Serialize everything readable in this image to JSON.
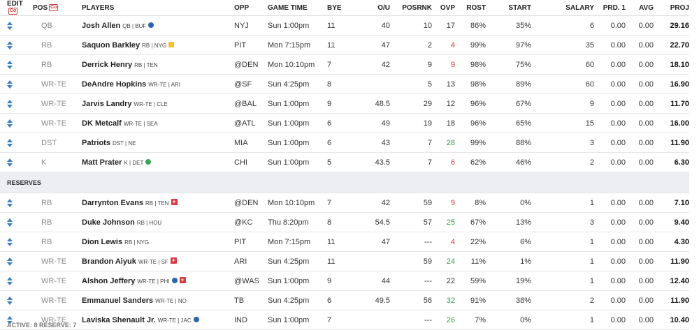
{
  "columns": {
    "edit": "EDIT",
    "pos": "POS",
    "players": "PLAYERS",
    "opp": "OPP",
    "game_time": "GAME TIME",
    "bye": "BYE",
    "ou": "O/U",
    "posrnk": "POSRNK",
    "ovp": "OVP",
    "rost": "ROST",
    "start": "START",
    "salary": "SALARY",
    "prd1": "PRD. 1",
    "avg": "AVG",
    "proj": "PROJ"
  },
  "header_icon_label": "Co",
  "starters": [
    {
      "pos": "QB",
      "name": "Josh Allen",
      "meta": "QB | BUF",
      "icon": "blue",
      "opp": "NYJ",
      "time": "Sun 1:00pm",
      "bye": "11",
      "ou": "40",
      "posrnk": "10",
      "ovp": "17",
      "ovp_color": "",
      "rost": "86%",
      "start": "35%",
      "salary": "6",
      "prd1": "0.00",
      "avg": "0.00",
      "proj": "29.16"
    },
    {
      "pos": "RB",
      "name": "Saquon Barkley",
      "meta": "RB | NYG",
      "icon": "note",
      "opp": "PIT",
      "time": "Mon 7:15pm",
      "bye": "11",
      "ou": "47",
      "posrnk": "2",
      "ovp": "4",
      "ovp_color": "red",
      "rost": "99%",
      "start": "97%",
      "salary": "35",
      "prd1": "0.00",
      "avg": "0.00",
      "proj": "22.70"
    },
    {
      "pos": "RB",
      "name": "Derrick Henry",
      "meta": "RB | TEN",
      "icon": "",
      "opp": "@DEN",
      "time": "Mon 10:10pm",
      "bye": "7",
      "ou": "42",
      "posrnk": "9",
      "ovp": "9",
      "ovp_color": "red",
      "rost": "98%",
      "start": "75%",
      "salary": "60",
      "prd1": "0.00",
      "avg": "0.00",
      "proj": "18.10"
    },
    {
      "pos": "WR-TE",
      "name": "DeAndre Hopkins",
      "meta": "WR-TE | ARI",
      "icon": "",
      "opp": "@SF",
      "time": "Sun 4:25pm",
      "bye": "8",
      "ou": "",
      "posrnk": "5",
      "ovp": "13",
      "ovp_color": "",
      "rost": "98%",
      "start": "89%",
      "salary": "60",
      "prd1": "0.00",
      "avg": "0.00",
      "proj": "16.90"
    },
    {
      "pos": "WR-TE",
      "name": "Jarvis Landry",
      "meta": "WR-TE | CLE",
      "icon": "",
      "opp": "@BAL",
      "time": "Sun 1:00pm",
      "bye": "9",
      "ou": "48.5",
      "posrnk": "29",
      "ovp": "12",
      "ovp_color": "",
      "rost": "96%",
      "start": "67%",
      "salary": "9",
      "prd1": "0.00",
      "avg": "0.00",
      "proj": "11.70"
    },
    {
      "pos": "WR-TE",
      "name": "DK Metcalf",
      "meta": "WR-TE | SEA",
      "icon": "",
      "opp": "@ATL",
      "time": "Sun 1:00pm",
      "bye": "6",
      "ou": "49",
      "posrnk": "19",
      "ovp": "18",
      "ovp_color": "",
      "rost": "96%",
      "start": "65%",
      "salary": "15",
      "prd1": "0.00",
      "avg": "0.00",
      "proj": "16.00"
    },
    {
      "pos": "DST",
      "name": "Patriots",
      "meta": "DST | NE",
      "icon": "",
      "opp": "MIA",
      "time": "Sun 1:00pm",
      "bye": "6",
      "ou": "43",
      "posrnk": "7",
      "ovp": "28",
      "ovp_color": "green",
      "rost": "99%",
      "start": "88%",
      "salary": "3",
      "prd1": "0.00",
      "avg": "0.00",
      "proj": "11.90"
    },
    {
      "pos": "K",
      "name": "Matt Prater",
      "meta": "K | DET",
      "icon": "green",
      "opp": "CHI",
      "time": "Sun 1:00pm",
      "bye": "5",
      "ou": "43.5",
      "posrnk": "7",
      "ovp": "6",
      "ovp_color": "red",
      "rost": "62%",
      "start": "46%",
      "salary": "2",
      "prd1": "0.00",
      "avg": "0.00",
      "proj": "6.30"
    }
  ],
  "reserves_label": "RESERVES",
  "reserves": [
    {
      "pos": "RB",
      "name": "Darrynton Evans",
      "meta": "RB | TEN",
      "icon": "inj",
      "opp": "@DEN",
      "time": "Mon 10:10pm",
      "bye": "7",
      "ou": "42",
      "posrnk": "59",
      "ovp": "9",
      "ovp_color": "red",
      "rost": "8%",
      "start": "0%",
      "salary": "1",
      "prd1": "0.00",
      "avg": "0.00",
      "proj": "7.10"
    },
    {
      "pos": "RB",
      "name": "Duke Johnson",
      "meta": "RB | HOU",
      "icon": "",
      "opp": "@KC",
      "time": "Thu 8:20pm",
      "bye": "8",
      "ou": "54.5",
      "posrnk": "57",
      "ovp": "25",
      "ovp_color": "green",
      "rost": "67%",
      "start": "13%",
      "salary": "3",
      "prd1": "0.00",
      "avg": "0.00",
      "proj": "9.40"
    },
    {
      "pos": "RB",
      "name": "Dion Lewis",
      "meta": "RB | NYG",
      "icon": "",
      "opp": "PIT",
      "time": "Mon 7:15pm",
      "bye": "11",
      "ou": "47",
      "posrnk": "---",
      "ovp": "4",
      "ovp_color": "red",
      "rost": "22%",
      "start": "6%",
      "salary": "1",
      "prd1": "0.00",
      "avg": "0.00",
      "proj": "4.30"
    },
    {
      "pos": "WR-TE",
      "name": "Brandon Aiyuk",
      "meta": "WR-TE | SF",
      "icon": "inj",
      "opp": "ARI",
      "time": "Sun 4:25pm",
      "bye": "11",
      "ou": "",
      "posrnk": "59",
      "ovp": "24",
      "ovp_color": "green",
      "rost": "11%",
      "start": "1%",
      "salary": "1",
      "prd1": "0.00",
      "avg": "0.00",
      "proj": "11.90"
    },
    {
      "pos": "WR-TE",
      "name": "Alshon Jeffery",
      "meta": "WR-TE | PHI",
      "icon": "blue-inj",
      "opp": "@WAS",
      "time": "Sun 1:00pm",
      "bye": "9",
      "ou": "44",
      "posrnk": "---",
      "ovp": "22",
      "ovp_color": "",
      "rost": "59%",
      "start": "19%",
      "salary": "1",
      "prd1": "0.00",
      "avg": "0.00",
      "proj": "12.40"
    },
    {
      "pos": "WR-TE",
      "name": "Emmanuel Sanders",
      "meta": "WR-TE | NO",
      "icon": "",
      "opp": "TB",
      "time": "Sun 4:25pm",
      "bye": "6",
      "ou": "49.5",
      "posrnk": "56",
      "ovp": "32",
      "ovp_color": "green",
      "rost": "91%",
      "start": "38%",
      "salary": "2",
      "prd1": "0.00",
      "avg": "0.00",
      "proj": "11.90"
    },
    {
      "pos": "WR-TE",
      "name": "Laviska Shenault Jr.",
      "meta": "WR-TE | JAC",
      "icon": "blue",
      "opp": "IND",
      "time": "Sun 1:00pm",
      "bye": "7",
      "ou": "",
      "posrnk": "---",
      "ovp": "26",
      "ovp_color": "green",
      "rost": "7%",
      "start": "0%",
      "salary": "1",
      "prd1": "0.00",
      "avg": "0.00",
      "proj": "10.40"
    }
  ],
  "footer": "ACTIVE: 8 RESERVE: 7"
}
